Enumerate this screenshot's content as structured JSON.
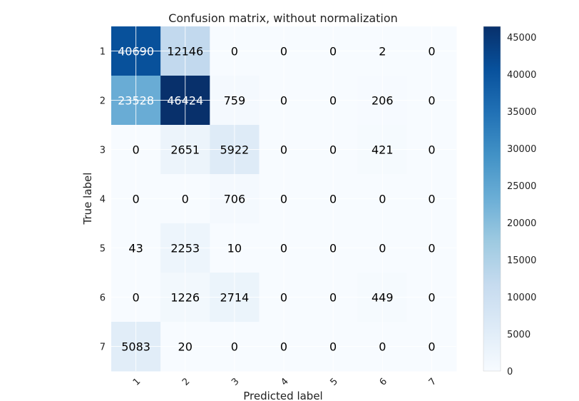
{
  "chart_data": {
    "type": "heatmap",
    "title": "Confusion matrix, without normalization",
    "xlabel": "Predicted label",
    "ylabel": "True label",
    "x_categories": [
      "1",
      "2",
      "3",
      "4",
      "5",
      "6",
      "7"
    ],
    "y_categories": [
      "1",
      "2",
      "3",
      "4",
      "5",
      "6",
      "7"
    ],
    "matrix": [
      [
        40690,
        12146,
        0,
        0,
        0,
        2,
        0
      ],
      [
        23528,
        46424,
        759,
        0,
        0,
        206,
        0
      ],
      [
        0,
        2651,
        5922,
        0,
        0,
        421,
        0
      ],
      [
        0,
        0,
        706,
        0,
        0,
        0,
        0
      ],
      [
        43,
        2253,
        10,
        0,
        0,
        0,
        0
      ],
      [
        0,
        1226,
        2714,
        0,
        0,
        449,
        0
      ],
      [
        5083,
        20,
        0,
        0,
        0,
        0,
        0
      ]
    ],
    "colormap": "Blues",
    "colorbar": {
      "min": 0,
      "max": 46424,
      "ticks": [
        0,
        5000,
        10000,
        15000,
        20000,
        25000,
        30000,
        35000,
        40000,
        45000
      ]
    },
    "grid": true
  }
}
